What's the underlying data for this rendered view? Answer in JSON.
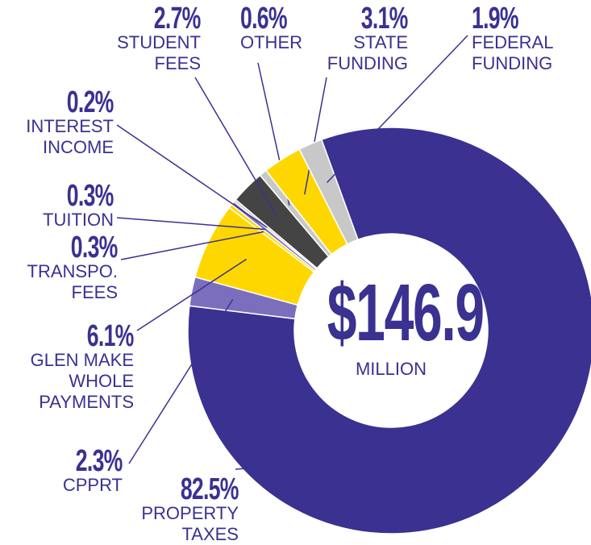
{
  "chart_data": {
    "type": "donut",
    "center_value": "$146.9",
    "center_unit": "MILLION",
    "categories": [
      "PROPERTY TAXES",
      "CPPRT",
      "GLEN MAKE WHOLE PAYMENTS",
      "TRANSPO. FEES",
      "TUITION",
      "INTEREST INCOME",
      "STUDENT FEES",
      "OTHER",
      "STATE FUNDING",
      "FEDERAL FUNDING"
    ],
    "values": [
      82.5,
      2.3,
      6.1,
      0.3,
      0.3,
      0.2,
      2.7,
      0.6,
      3.1,
      1.9
    ],
    "value_labels": [
      "82.5%",
      "2.3%",
      "6.1%",
      "0.3%",
      "0.3%",
      "0.2%",
      "2.7%",
      "0.6%",
      "3.1%",
      "1.9%"
    ],
    "colors": [
      "#3a3191",
      "#7b6fbd",
      "#ffd700",
      "#ffd700",
      "#7b6fbd",
      "#c8c8c8",
      "#444444",
      "#c8c8c8",
      "#ffd700",
      "#c8c8c8"
    ]
  }
}
